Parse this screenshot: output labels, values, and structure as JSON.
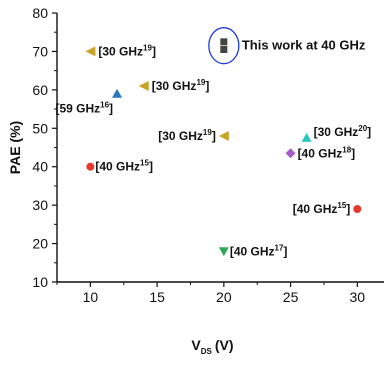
{
  "chart_data": {
    "type": "scatter",
    "title": "",
    "xlabel_main": "V",
    "xlabel_sub": "DS",
    "xlabel_unit": "(V)",
    "ylabel": "PAE (%)",
    "xlim": [
      7.5,
      32
    ],
    "ylim": [
      10,
      80
    ],
    "x_ticks": [
      10,
      15,
      20,
      25,
      30
    ],
    "y_ticks": [
      10,
      20,
      30,
      40,
      50,
      60,
      70,
      80
    ],
    "grid": false,
    "highlight_label": "This work at 40 GHz",
    "points": [
      {
        "x": 10,
        "y": 70,
        "marker": "triangle-left",
        "color": "#c9a227",
        "label_main": "[30 GHz",
        "label_sup": "19",
        "label_end": "]"
      },
      {
        "x": 14,
        "y": 61,
        "marker": "triangle-left",
        "color": "#c9a227",
        "label_main": "[30 GHz",
        "label_sup": "19",
        "label_end": "]"
      },
      {
        "x": 12,
        "y": 59,
        "marker": "triangle-up",
        "color": "#2f75c6",
        "label_main": "[59 GHz",
        "label_sup": "16",
        "label_end": "]"
      },
      {
        "x": 20,
        "y": 48,
        "marker": "triangle-left",
        "color": "#c9a227",
        "label_main": "[30 GHz",
        "label_sup": "19",
        "label_end": "]"
      },
      {
        "x": 10,
        "y": 40,
        "marker": "circle",
        "color": "#e5392b",
        "label_main": "[40 GHz",
        "label_sup": "15",
        "label_end": "]"
      },
      {
        "x": 26.2,
        "y": 47.5,
        "marker": "triangle-up",
        "color": "#2ac7c2",
        "label_main": "[30 GHz",
        "label_sup": "20",
        "label_end": "]"
      },
      {
        "x": 25,
        "y": 43.5,
        "marker": "diamond",
        "color": "#a45ec7",
        "label_main": "[40 GHz",
        "label_sup": "18",
        "label_end": "]"
      },
      {
        "x": 30,
        "y": 29,
        "marker": "circle",
        "color": "#e5392b",
        "label_main": "[40 GHz",
        "label_sup": "15",
        "label_end": "]"
      },
      {
        "x": 20,
        "y": 18,
        "marker": "triangle-down",
        "color": "#2fa85a",
        "label_main": "[40 GHz",
        "label_sup": "17",
        "label_end": "]"
      },
      {
        "x": 20,
        "y": 72.5,
        "marker": "square",
        "color": "#444444",
        "label_main": "",
        "label_sup": "",
        "label_end": ""
      },
      {
        "x": 20,
        "y": 70.5,
        "marker": "square",
        "color": "#444444",
        "label_main": "",
        "label_sup": "",
        "label_end": ""
      }
    ],
    "highlight_ellipse_color": "#1f3fd6"
  }
}
